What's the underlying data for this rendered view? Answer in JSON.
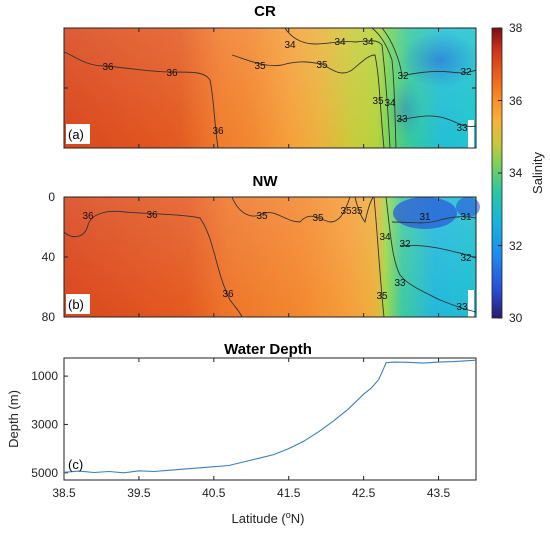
{
  "colors": {
    "line": "#3a7fbf",
    "contour": "#333333",
    "axis": "#222222"
  },
  "colormap": [
    "#2b1a6e",
    "#2a4fd6",
    "#1d8cf0",
    "#17b7d8",
    "#2ec7a0",
    "#7bd05a",
    "#c8c83a",
    "#f6b23a",
    "#f88a24",
    "#e9591a",
    "#c8301a",
    "#7a0e12"
  ],
  "colorbar": {
    "label": "Salinity",
    "ticks": [
      "38",
      "36",
      "34",
      "32",
      "30"
    ],
    "range": [
      30,
      38
    ]
  },
  "chart_data": [
    {
      "type": "heatmap",
      "title": "CR",
      "panel_label": "(a)",
      "x_range": [
        38.5,
        44.0
      ],
      "contour_labels": [
        "36",
        "36",
        "36",
        "35",
        "35",
        "34",
        "34",
        "34",
        "35",
        "34",
        "33",
        "32",
        "32",
        "33"
      ]
    },
    {
      "type": "heatmap",
      "title": "NW",
      "panel_label": "(b)",
      "x_range": [
        38.5,
        44.0
      ],
      "ylim": [
        0,
        80
      ],
      "yticks": [
        "0",
        "40",
        "80"
      ],
      "contour_labels": [
        "36",
        "36",
        "36",
        "35",
        "35",
        "35",
        "35",
        "34",
        "35",
        "33",
        "31",
        "31",
        "32",
        "32",
        "33"
      ]
    },
    {
      "type": "line",
      "title": "Water Depth",
      "panel_label": "(c)",
      "xlabel": "Latitude (oN)",
      "xlabel_main": "Latitude (",
      "xlabel_sup": "o",
      "xlabel_tail": "N)",
      "ylabel": "Depth (m)",
      "xticks": [
        "38.5",
        "39.5",
        "40.5",
        "41.5",
        "42.5",
        "43.5"
      ],
      "yticks": [
        "1000",
        "3000",
        "5000"
      ],
      "ylim": [
        250,
        5300
      ],
      "series": [
        {
          "x": [
            38.5,
            38.7,
            38.9,
            39.1,
            39.3,
            39.5,
            39.7,
            39.9,
            40.1,
            40.3,
            40.5,
            40.7,
            40.9,
            41.1,
            41.3,
            41.5,
            41.7,
            41.9,
            42.1,
            42.3,
            42.5,
            42.6,
            42.7,
            42.75,
            42.8,
            42.9,
            43.1,
            43.3,
            43.5,
            43.7,
            43.9,
            44.0
          ],
          "y": [
            4980,
            4930,
            4990,
            4950,
            5000,
            4920,
            4950,
            4900,
            4850,
            4800,
            4750,
            4700,
            4550,
            4400,
            4250,
            4000,
            3700,
            3300,
            2850,
            2350,
            1750,
            1500,
            1150,
            800,
            450,
            420,
            430,
            460,
            420,
            400,
            360,
            340
          ]
        }
      ]
    }
  ]
}
